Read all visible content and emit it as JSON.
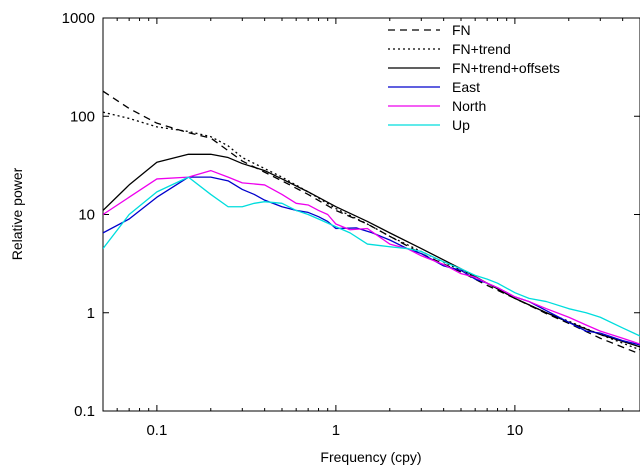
{
  "chart_data": {
    "type": "line",
    "title": "",
    "xlabel": "Frequency (cpy)",
    "ylabel": "Relative power",
    "x_scale": "log",
    "y_scale": "log",
    "xlim": [
      0.05,
      50
    ],
    "ylim": [
      0.1,
      1000
    ],
    "x_ticks": [
      {
        "value": 0.1,
        "label": "0.1"
      },
      {
        "value": 1,
        "label": "1"
      },
      {
        "value": 10,
        "label": "10"
      }
    ],
    "y_ticks": [
      {
        "value": 0.1,
        "label": "0.1"
      },
      {
        "value": 1,
        "label": "1"
      },
      {
        "value": 10,
        "label": "10"
      },
      {
        "value": 100,
        "label": "100"
      },
      {
        "value": 1000,
        "label": "1000"
      }
    ],
    "grid": false,
    "legend_position": "top-right",
    "series": [
      {
        "name": "FN",
        "color": "#000000",
        "dash": "dashed",
        "points": [
          [
            0.05,
            180
          ],
          [
            0.07,
            120
          ],
          [
            0.1,
            85
          ],
          [
            0.15,
            68
          ],
          [
            0.2,
            60
          ],
          [
            0.3,
            35
          ],
          [
            0.5,
            22
          ],
          [
            0.7,
            16
          ],
          [
            1,
            11
          ],
          [
            1.5,
            8
          ],
          [
            2,
            6
          ],
          [
            3,
            4
          ],
          [
            5,
            2.6
          ],
          [
            7,
            1.9
          ],
          [
            10,
            1.4
          ],
          [
            15,
            0.98
          ],
          [
            20,
            0.78
          ],
          [
            30,
            0.55
          ],
          [
            50,
            0.38
          ]
        ]
      },
      {
        "name": "FN+trend",
        "color": "#000000",
        "dash": "dotted",
        "points": [
          [
            0.05,
            110
          ],
          [
            0.07,
            95
          ],
          [
            0.1,
            78
          ],
          [
            0.15,
            70
          ],
          [
            0.2,
            62
          ],
          [
            0.25,
            50
          ],
          [
            0.3,
            38
          ],
          [
            0.5,
            24
          ],
          [
            0.7,
            17
          ],
          [
            1,
            11.5
          ],
          [
            1.5,
            8
          ],
          [
            2,
            6
          ],
          [
            3,
            4.2
          ],
          [
            5,
            2.7
          ],
          [
            7,
            2
          ],
          [
            10,
            1.4
          ],
          [
            15,
            1
          ],
          [
            20,
            0.82
          ],
          [
            30,
            0.6
          ],
          [
            50,
            0.42
          ]
        ]
      },
      {
        "name": "FN+trend+offsets",
        "color": "#000000",
        "dash": "solid",
        "points": [
          [
            0.05,
            11
          ],
          [
            0.07,
            20
          ],
          [
            0.1,
            34
          ],
          [
            0.15,
            41
          ],
          [
            0.2,
            41
          ],
          [
            0.25,
            38
          ],
          [
            0.3,
            33
          ],
          [
            0.4,
            28
          ],
          [
            0.5,
            23
          ],
          [
            0.7,
            17
          ],
          [
            1,
            12
          ],
          [
            1.5,
            8.5
          ],
          [
            2,
            6.5
          ],
          [
            3,
            4.5
          ],
          [
            5,
            2.8
          ],
          [
            7,
            2
          ],
          [
            10,
            1.4
          ],
          [
            15,
            1
          ],
          [
            20,
            0.8
          ],
          [
            30,
            0.6
          ],
          [
            50,
            0.45
          ]
        ]
      },
      {
        "name": "East",
        "color": "#0000cc",
        "dash": "solid",
        "points": [
          [
            0.05,
            6.5
          ],
          [
            0.07,
            9
          ],
          [
            0.1,
            15
          ],
          [
            0.15,
            24
          ],
          [
            0.2,
            24
          ],
          [
            0.25,
            22
          ],
          [
            0.3,
            18
          ],
          [
            0.35,
            16
          ],
          [
            0.4,
            14
          ],
          [
            0.5,
            12
          ],
          [
            0.6,
            11
          ],
          [
            0.7,
            10.5
          ],
          [
            0.8,
            9.5
          ],
          [
            0.9,
            8.5
          ],
          [
            1,
            7.2
          ],
          [
            1.3,
            7.3
          ],
          [
            1.6,
            6.5
          ],
          [
            2,
            5.5
          ],
          [
            2.5,
            4.5
          ],
          [
            3,
            4
          ],
          [
            4,
            3
          ],
          [
            5,
            2.7
          ],
          [
            6,
            2.2
          ],
          [
            7,
            2
          ],
          [
            8,
            1.8
          ],
          [
            10,
            1.45
          ],
          [
            12,
            1.3
          ],
          [
            15,
            1.05
          ],
          [
            20,
            0.8
          ],
          [
            25,
            0.65
          ],
          [
            30,
            0.62
          ],
          [
            40,
            0.52
          ],
          [
            50,
            0.47
          ]
        ]
      },
      {
        "name": "North",
        "color": "#ee00ee",
        "dash": "solid",
        "points": [
          [
            0.05,
            10
          ],
          [
            0.07,
            15
          ],
          [
            0.1,
            23
          ],
          [
            0.15,
            24
          ],
          [
            0.2,
            28
          ],
          [
            0.25,
            24
          ],
          [
            0.3,
            21
          ],
          [
            0.4,
            20
          ],
          [
            0.5,
            16
          ],
          [
            0.6,
            13
          ],
          [
            0.7,
            12.5
          ],
          [
            0.8,
            11
          ],
          [
            0.9,
            10
          ],
          [
            1,
            8
          ],
          [
            1.2,
            7
          ],
          [
            1.5,
            7.2
          ],
          [
            2,
            5
          ],
          [
            2.5,
            4.5
          ],
          [
            3,
            3.8
          ],
          [
            4,
            3.1
          ],
          [
            5,
            2.5
          ],
          [
            6,
            2.3
          ],
          [
            7,
            2
          ],
          [
            8,
            1.8
          ],
          [
            10,
            1.45
          ],
          [
            12,
            1.3
          ],
          [
            15,
            1.1
          ],
          [
            20,
            0.9
          ],
          [
            25,
            0.75
          ],
          [
            30,
            0.65
          ],
          [
            40,
            0.55
          ],
          [
            50,
            0.48
          ]
        ]
      },
      {
        "name": "Up",
        "color": "#00dddd",
        "dash": "solid",
        "points": [
          [
            0.05,
            4.5
          ],
          [
            0.07,
            10
          ],
          [
            0.1,
            17
          ],
          [
            0.15,
            24
          ],
          [
            0.2,
            16
          ],
          [
            0.25,
            12
          ],
          [
            0.3,
            12
          ],
          [
            0.35,
            13
          ],
          [
            0.4,
            13.5
          ],
          [
            0.5,
            13
          ],
          [
            0.6,
            11
          ],
          [
            0.7,
            10
          ],
          [
            0.8,
            9
          ],
          [
            1,
            7.5
          ],
          [
            1.2,
            6.5
          ],
          [
            1.5,
            5
          ],
          [
            2,
            4.7
          ],
          [
            2.5,
            4.5
          ],
          [
            3,
            4.2
          ],
          [
            4,
            3.3
          ],
          [
            5,
            2.8
          ],
          [
            6,
            2.4
          ],
          [
            7,
            2.2
          ],
          [
            8,
            2
          ],
          [
            10,
            1.6
          ],
          [
            12,
            1.4
          ],
          [
            15,
            1.3
          ],
          [
            20,
            1.1
          ],
          [
            25,
            1
          ],
          [
            30,
            0.9
          ],
          [
            40,
            0.7
          ],
          [
            50,
            0.58
          ]
        ]
      }
    ]
  }
}
